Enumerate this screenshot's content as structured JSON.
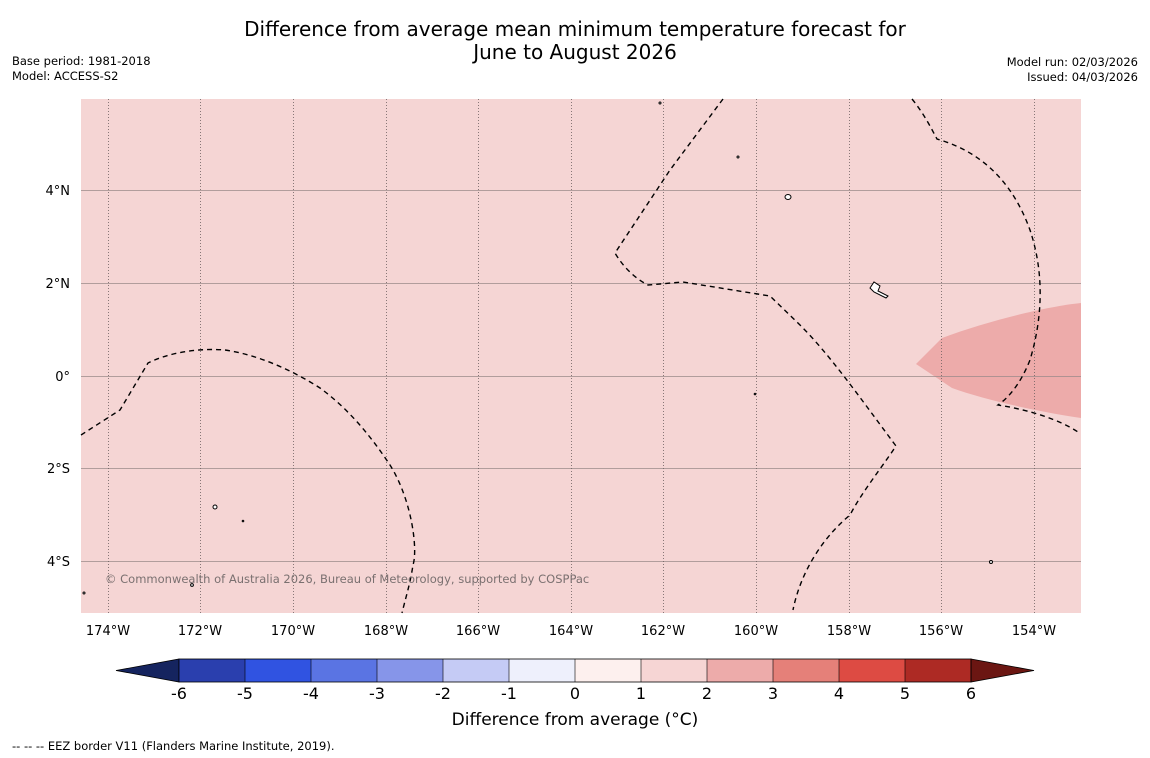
{
  "title_line1": "Difference from average mean minimum temperature forecast for",
  "title_line2": "June to August 2026",
  "base_period": "Base period: 1981-2018",
  "model": "Model: ACCESS-S2",
  "model_run": "Model run: 02/03/2026",
  "issued": "Issued: 04/03/2026",
  "lon_labels": [
    "174°W",
    "172°W",
    "170°W",
    "168°W",
    "166°W",
    "164°W",
    "162°W",
    "160°W",
    "158°W",
    "156°W",
    "154°W"
  ],
  "lat_labels": [
    "4°N",
    "2°N",
    "0°",
    "2°S",
    "4°S"
  ],
  "copyright": "© Commonwealth of Australia 2026, Bureau of Meteorology, supported by COSPPac",
  "colorbar": {
    "label": "Difference from average (°C)",
    "ticks": [
      "-6",
      "-5",
      "-4",
      "-3",
      "-2",
      "-1",
      "0",
      "1",
      "2",
      "3",
      "4",
      "5",
      "6"
    ],
    "colors": [
      "#15245f",
      "#2a3fae",
      "#3053e1",
      "#5a74e3",
      "#8695e9",
      "#c5cbf5",
      "#eef0fc",
      "#fdf0ee",
      "#f6d5d4",
      "#edabaa",
      "#e58079",
      "#dd4b43",
      "#ad2a24",
      "#6b1612"
    ]
  },
  "legend": {
    "background_color": "#f5d5d4",
    "anomaly_1_2_color": "#f6d5d4",
    "anomaly_2_3_color": "#edabaa"
  },
  "footer": "--  --  -- EEZ border V11 (Flanders Marine Institute, 2019)."
}
